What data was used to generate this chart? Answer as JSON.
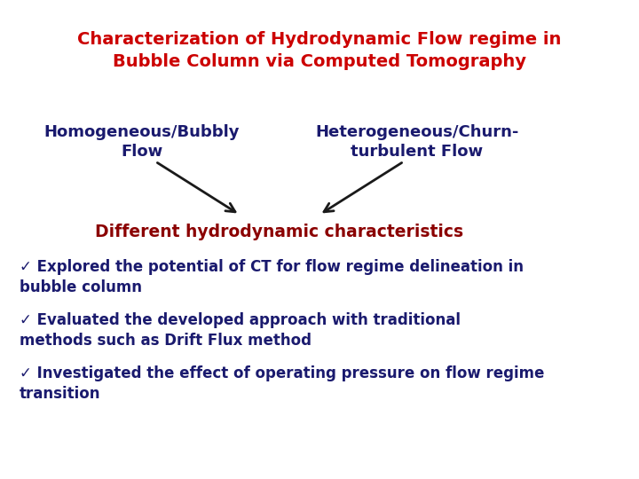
{
  "title_line1": "Characterization of Hydrodynamic Flow regime in",
  "title_line2": "Bubble Column via Computed Tomography",
  "title_color": "#cc0000",
  "label1": "Homogeneous/Bubbly\nFlow",
  "label2": "Heterogeneous/Churn-\nturbulent Flow",
  "label_color": "#1a1a6e",
  "center_label": "Different hydrodynamic characteristics",
  "center_label_color": "#8b0000",
  "bullet1": "✓ Explored the potential of CT for flow regime delineation in\nbubble column",
  "bullet2": "✓ Evaluated the developed approach with traditional\nmethods such as Drift Flux method",
  "bullet3": "✓ Investigated the effect of operating pressure on flow regime\ntransition",
  "bullet_color": "#1a1a6e",
  "background_color": "#ffffff",
  "arrow_color": "#1a1a1a"
}
